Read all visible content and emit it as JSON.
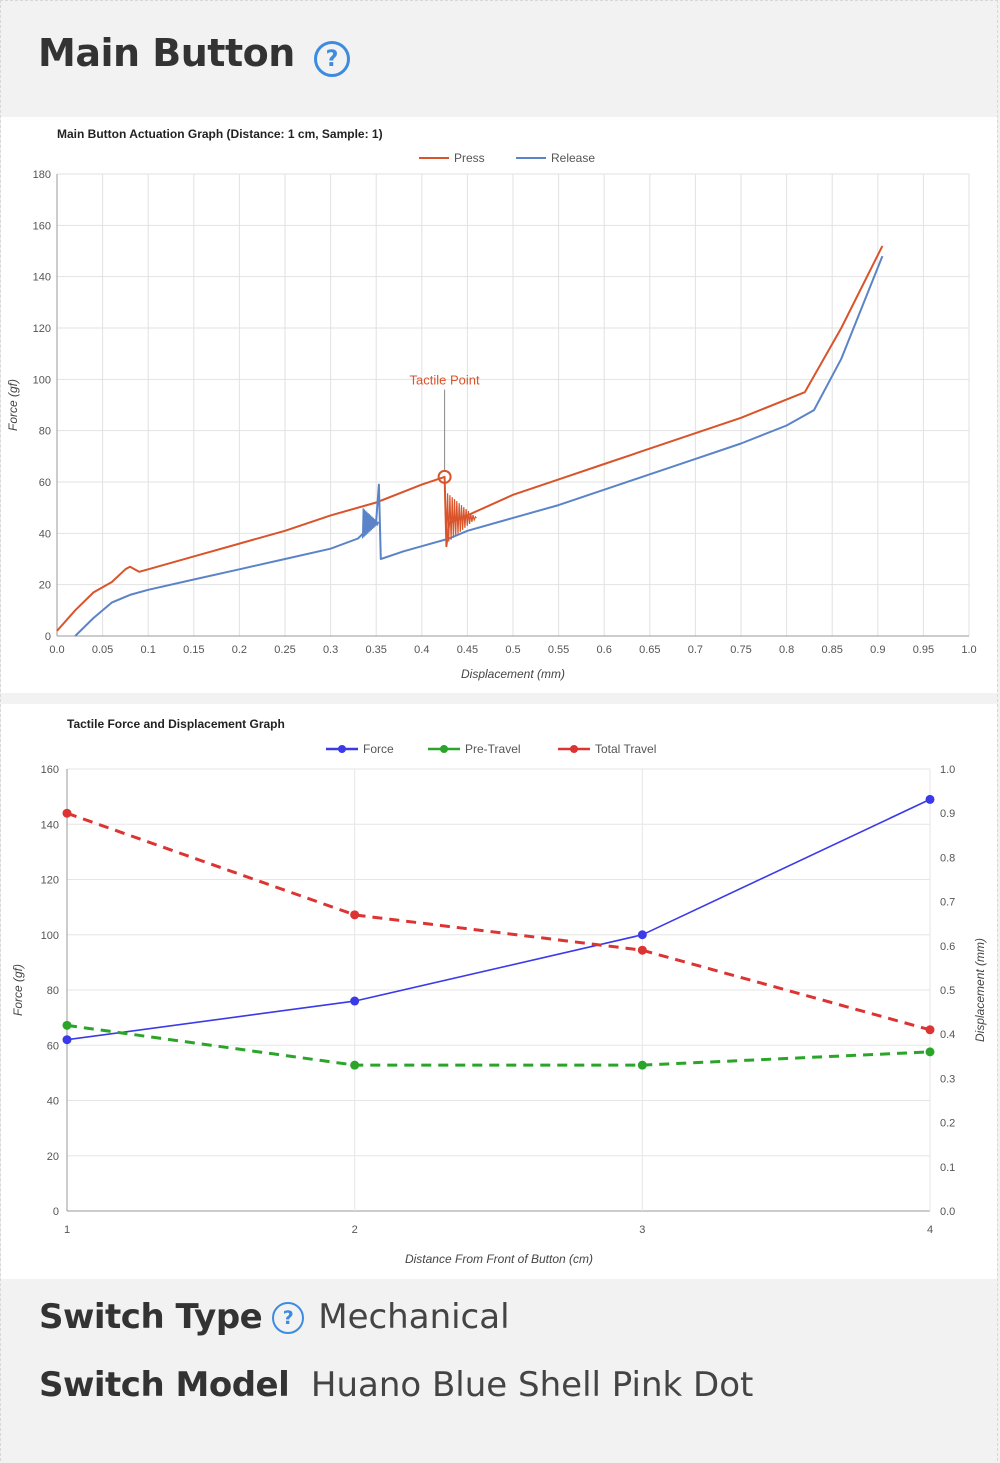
{
  "header": {
    "title": "Main Button"
  },
  "info": {
    "switch_type_label": "Switch Type",
    "switch_type_value": "Mechanical",
    "switch_model_label": "Switch Model",
    "switch_model_value": "Huano Blue Shell Pink Dot"
  },
  "icons": {
    "help": "question-circle-icon",
    "help_glyph": "?"
  },
  "colors": {
    "accent": "#3d8be0",
    "press": "#d9542b",
    "release": "#5b84c8",
    "force": "#3a3ae8",
    "pre_travel": "#2aa52a",
    "total_travel": "#dd3333"
  },
  "chart_data": [
    {
      "type": "line",
      "title": "Main Button Actuation Graph (Distance: 1 cm, Sample: 1)",
      "xlabel": "Displacement (mm)",
      "ylabel": "Force (gf)",
      "xlim": [
        0,
        1.0
      ],
      "ylim": [
        0,
        180
      ],
      "x_ticks": [
        "0.0",
        "0.05",
        "0.1",
        "0.15",
        "0.2",
        "0.25",
        "0.3",
        "0.35",
        "0.4",
        "0.45",
        "0.5",
        "0.55",
        "0.6",
        "0.65",
        "0.7",
        "0.75",
        "0.8",
        "0.85",
        "0.9",
        "0.95",
        "1.0"
      ],
      "y_ticks": [
        "0",
        "20",
        "40",
        "60",
        "80",
        "100",
        "120",
        "140",
        "160",
        "180"
      ],
      "grid": true,
      "legend": "top",
      "annotation": {
        "label": "Tactile Point",
        "x": 0.425,
        "y": 62
      },
      "series": [
        {
          "name": "Press",
          "color": "#d9542b",
          "points": [
            [
              0.0,
              2
            ],
            [
              0.02,
              10
            ],
            [
              0.04,
              17
            ],
            [
              0.06,
              21
            ],
            [
              0.075,
              26
            ],
            [
              0.08,
              27
            ],
            [
              0.09,
              25
            ],
            [
              0.1,
              26
            ],
            [
              0.15,
              31
            ],
            [
              0.2,
              36
            ],
            [
              0.25,
              41
            ],
            [
              0.3,
              47
            ],
            [
              0.35,
              52
            ],
            [
              0.4,
              59
            ],
            [
              0.425,
              62
            ],
            [
              0.427,
              35
            ],
            [
              0.43,
              44
            ],
            [
              0.45,
              47
            ],
            [
              0.5,
              55
            ],
            [
              0.55,
              61
            ],
            [
              0.6,
              67
            ],
            [
              0.65,
              73
            ],
            [
              0.7,
              79
            ],
            [
              0.75,
              85
            ],
            [
              0.82,
              95
            ],
            [
              0.86,
              120
            ],
            [
              0.905,
              152
            ]
          ]
        },
        {
          "name": "Release",
          "color": "#5b84c8",
          "points": [
            [
              0.02,
              0
            ],
            [
              0.04,
              7
            ],
            [
              0.06,
              13
            ],
            [
              0.08,
              16
            ],
            [
              0.1,
              18
            ],
            [
              0.15,
              22
            ],
            [
              0.2,
              26
            ],
            [
              0.25,
              30
            ],
            [
              0.3,
              34
            ],
            [
              0.33,
              38
            ],
            [
              0.35,
              45
            ],
            [
              0.353,
              59
            ],
            [
              0.355,
              30
            ],
            [
              0.38,
              33
            ],
            [
              0.4,
              35
            ],
            [
              0.43,
              38
            ],
            [
              0.45,
              41
            ],
            [
              0.5,
              46
            ],
            [
              0.55,
              51
            ],
            [
              0.6,
              57
            ],
            [
              0.65,
              63
            ],
            [
              0.7,
              69
            ],
            [
              0.75,
              75
            ],
            [
              0.8,
              82
            ],
            [
              0.83,
              88
            ],
            [
              0.86,
              108
            ],
            [
              0.905,
              148
            ]
          ]
        }
      ]
    },
    {
      "type": "line",
      "title": "Tactile Force and Displacement Graph",
      "xlabel": "Distance From Front of Button (cm)",
      "ylabel": "Force (gf)",
      "y2label": "Displacement (mm)",
      "x": [
        1,
        2,
        3,
        4
      ],
      "xlim": [
        1,
        4
      ],
      "ylim": [
        0,
        160
      ],
      "y2lim": [
        0,
        1.0
      ],
      "x_ticks": [
        "1",
        "2",
        "3",
        "4"
      ],
      "y_ticks": [
        "0",
        "20",
        "40",
        "60",
        "80",
        "100",
        "120",
        "140",
        "160"
      ],
      "y2_ticks": [
        "0.0",
        "0.1",
        "0.2",
        "0.3",
        "0.4",
        "0.5",
        "0.6",
        "0.7",
        "0.8",
        "0.9",
        "1.0"
      ],
      "grid": true,
      "legend": "top",
      "series": [
        {
          "name": "Force",
          "axis": "left",
          "color": "#3a3ae8",
          "dashed": false,
          "values": [
            62,
            76,
            100,
            149
          ]
        },
        {
          "name": "Pre-Travel",
          "axis": "right",
          "color": "#2aa52a",
          "dashed": true,
          "values": [
            0.42,
            0.33,
            0.33,
            0.36
          ]
        },
        {
          "name": "Total Travel",
          "axis": "right",
          "color": "#dd3333",
          "dashed": true,
          "values": [
            0.9,
            0.67,
            0.59,
            0.41
          ]
        }
      ]
    }
  ]
}
